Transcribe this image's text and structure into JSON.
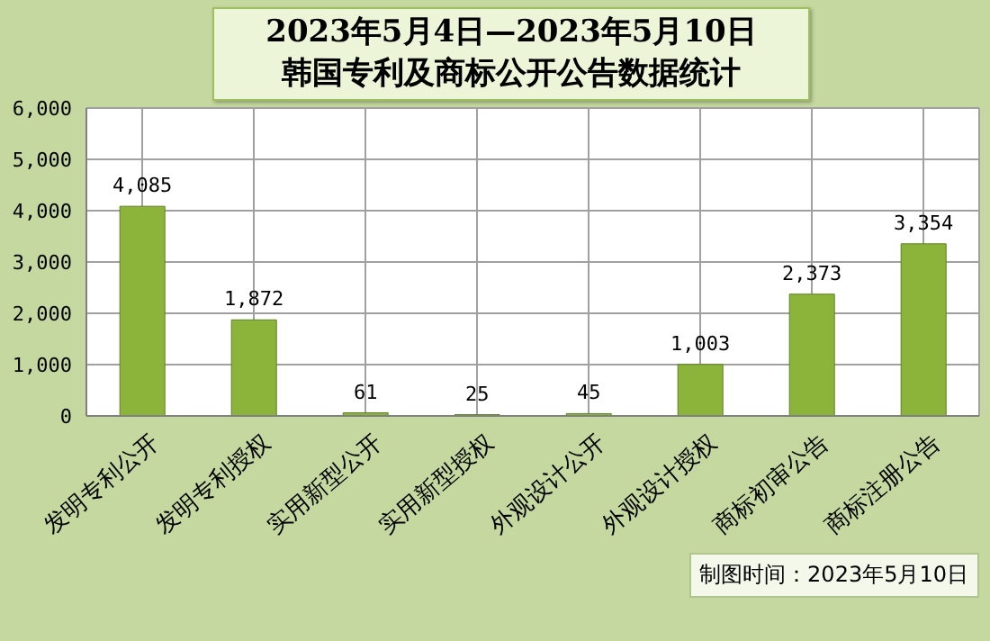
{
  "chart_data": {
    "type": "bar",
    "title": "2023年5月4日—2023年5月10日",
    "subtitle": "韩国专利及商标公开公告数据统计",
    "categories": [
      "发明专利公开",
      "发明专利授权",
      "实用新型公开",
      "实用新型授权",
      "外观设计公开",
      "外观设计授权",
      "商标初审公告",
      "商标注册公告"
    ],
    "values": [
      4085,
      1872,
      61,
      25,
      45,
      1003,
      2373,
      3354
    ],
    "value_labels": [
      "4,085",
      "1,872",
      "61",
      "25",
      "45",
      "1,003",
      "2,373",
      "3,354"
    ],
    "color": "#8cb43a",
    "ylim": [
      0,
      6000
    ],
    "yticks": [
      {
        "value": 0,
        "label": "0"
      },
      {
        "value": 1000,
        "label": "1,000"
      },
      {
        "value": 2000,
        "label": "2,000"
      },
      {
        "value": 3000,
        "label": "3,000"
      },
      {
        "value": 4000,
        "label": "4,000"
      },
      {
        "value": 5000,
        "label": "5,000"
      },
      {
        "value": 6000,
        "label": "6,000"
      }
    ],
    "grid": true,
    "annotations": [
      "制图时间：2023年5月10日"
    ]
  }
}
